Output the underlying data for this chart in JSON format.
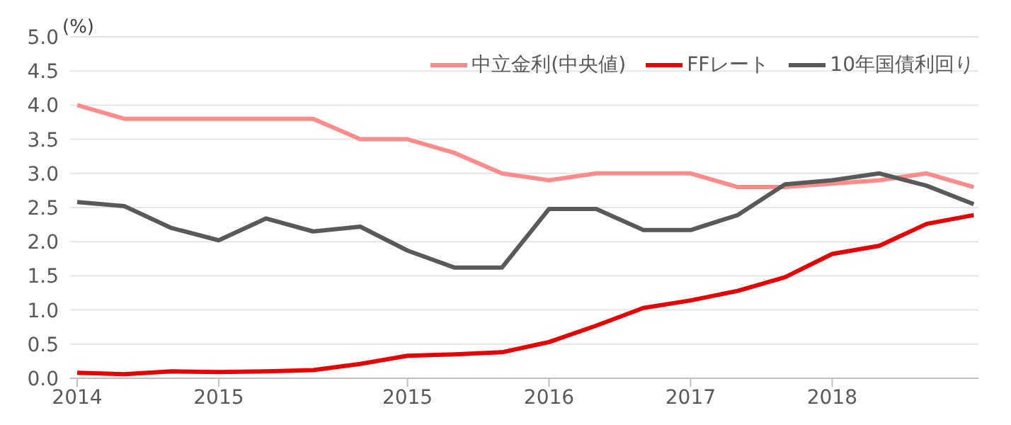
{
  "chart_data": {
    "type": "line",
    "ylabel": "(%)",
    "categories": [
      "2014",
      null,
      null,
      "2015",
      null,
      null,
      null,
      "2015",
      null,
      null,
      "2016",
      null,
      null,
      "2017",
      null,
      null,
      "2018",
      null,
      null,
      null
    ],
    "ylim": [
      0,
      5
    ],
    "yticks": [
      {
        "value": 0,
        "label": "0.0"
      },
      {
        "value": 0.5,
        "label": "0.5"
      },
      {
        "value": 1,
        "label": "1.0"
      },
      {
        "value": 1.5,
        "label": "1.5"
      },
      {
        "value": 2,
        "label": "2.0"
      },
      {
        "value": 2.5,
        "label": "2.5"
      },
      {
        "value": 3,
        "label": "3.0"
      },
      {
        "value": 3.5,
        "label": "3.5"
      },
      {
        "value": 4,
        "label": "4.0"
      },
      {
        "value": 4.5,
        "label": "4.5"
      },
      {
        "value": 5,
        "label": "5.0"
      }
    ],
    "grid": "y",
    "legend": "top right",
    "marker": "none",
    "line_style": "solid",
    "series": [
      {
        "name": "中立金利(中央値)",
        "color": "#ff8b8b",
        "values": [
          4.0,
          3.8,
          3.8,
          3.8,
          3.8,
          3.8,
          3.5,
          3.5,
          3.3,
          3.0,
          2.9,
          3.0,
          3.0,
          3.0,
          2.8,
          2.8,
          2.85,
          2.9,
          3.0,
          2.8
        ]
      },
      {
        "name": "FFレート",
        "color": "#e60000",
        "values": [
          0.08,
          0.06,
          0.1,
          0.09,
          0.1,
          0.12,
          0.21,
          0.33,
          0.35,
          0.38,
          0.53,
          0.77,
          1.03,
          1.14,
          1.28,
          1.48,
          1.82,
          1.94,
          2.26,
          2.39
        ]
      },
      {
        "name": "10年国債利回り",
        "color": "#595959",
        "values": [
          2.58,
          2.52,
          2.2,
          2.02,
          2.34,
          2.15,
          2.22,
          1.87,
          1.62,
          1.62,
          2.48,
          2.48,
          2.17,
          2.17,
          2.39,
          2.84,
          2.9,
          3.0,
          2.82,
          2.55
        ]
      }
    ]
  }
}
